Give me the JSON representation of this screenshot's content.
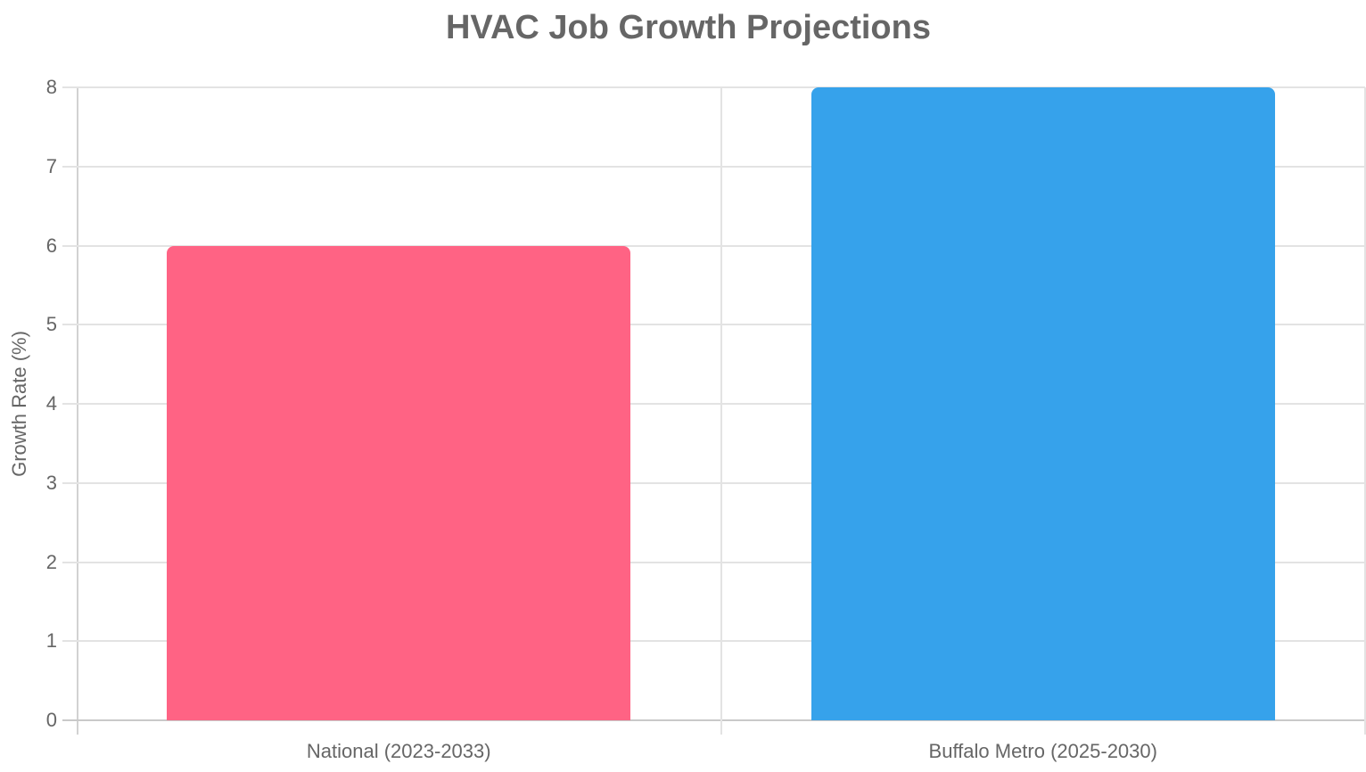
{
  "chart_data": {
    "type": "bar",
    "title": "HVAC Job Growth Projections",
    "xlabel": "",
    "ylabel": "Growth Rate (%)",
    "categories": [
      "National (2023-2033)",
      "Buffalo Metro (2025-2030)"
    ],
    "values": [
      6,
      8
    ],
    "colors": [
      "#ff6384",
      "#36a2eb"
    ],
    "ylim": [
      0,
      8
    ],
    "yticks": [
      "0",
      "1",
      "2",
      "3",
      "4",
      "5",
      "6",
      "7",
      "8"
    ],
    "grid": true,
    "legend": "none"
  }
}
